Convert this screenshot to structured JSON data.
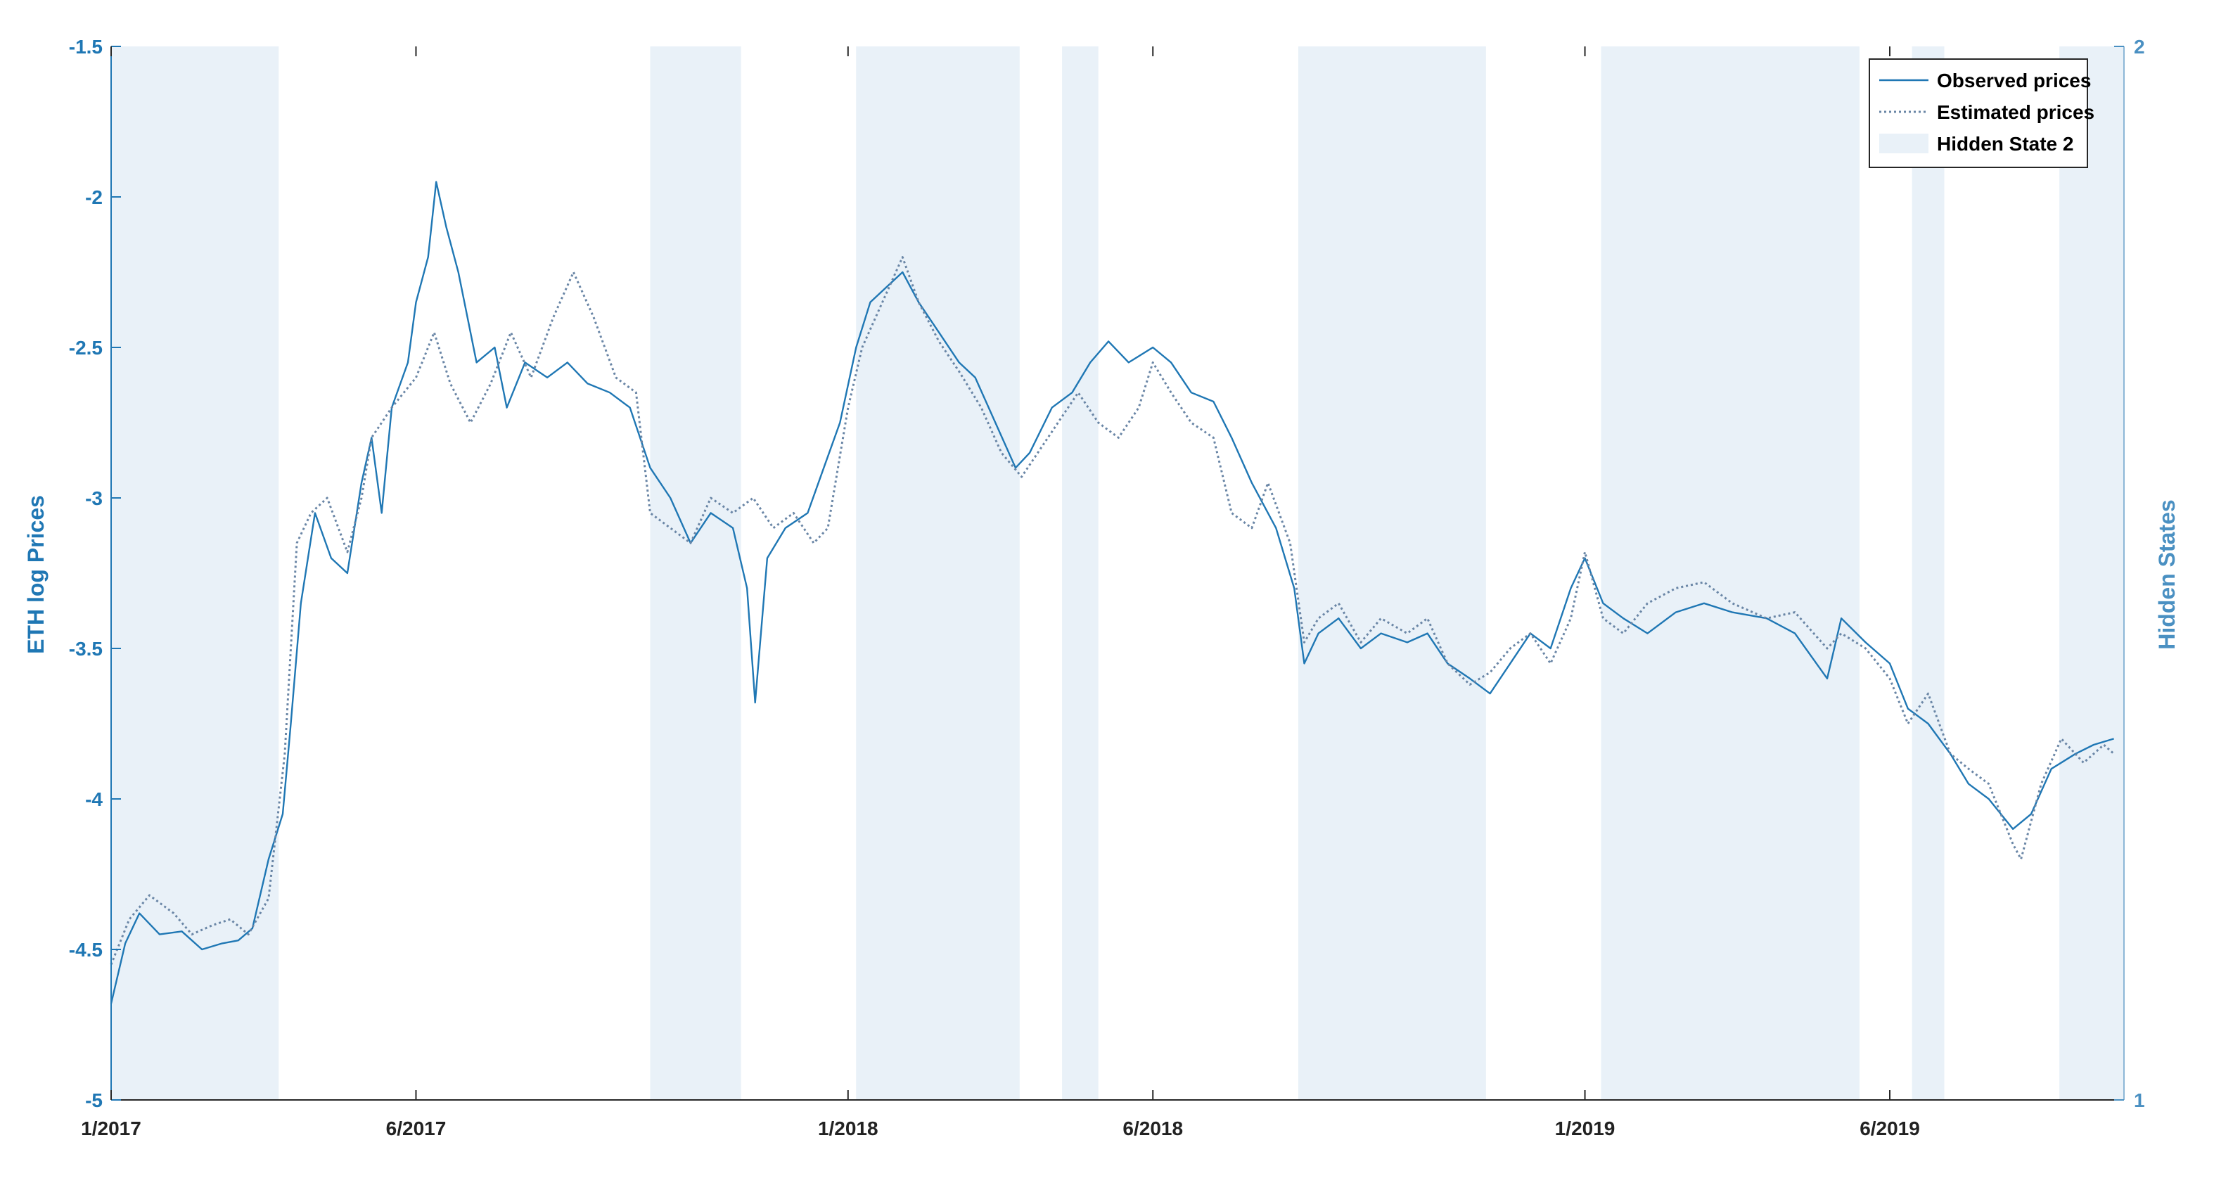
{
  "chart_data": {
    "type": "line",
    "x_tick_labels": [
      "1/2017",
      "6/2017",
      "1/2018",
      "6/2018",
      "1/2019",
      "6/2019"
    ],
    "x_ticks": [
      "2017-01-01",
      "2017-06-01",
      "2018-01-01",
      "2018-06-01",
      "2019-01-01",
      "2019-06-01"
    ],
    "xlim": [
      "2017-01-01",
      "2019-09-25"
    ],
    "ylabel": "ETH log Prices",
    "ylim": [
      -5,
      -1.5
    ],
    "y_tick_labels": [
      "-1.5",
      "-2",
      "-2.5",
      "-3",
      "-3.5",
      "-4",
      "-4.5",
      "-5"
    ],
    "ylabel_right": "Hidden States",
    "ylim_right": [
      1,
      2
    ],
    "y_right_tick_labels": [
      "2",
      "1"
    ],
    "legend_position": "top-right",
    "grid": false,
    "series": [
      {
        "name": "Observed prices",
        "style": "solid",
        "color": "#1f77b4",
        "points": [
          [
            "2017-01-01",
            -4.68
          ],
          [
            "2017-01-08",
            -4.48
          ],
          [
            "2017-01-15",
            -4.38
          ],
          [
            "2017-01-25",
            -4.45
          ],
          [
            "2017-02-05",
            -4.44
          ],
          [
            "2017-02-15",
            -4.5
          ],
          [
            "2017-02-25",
            -4.48
          ],
          [
            "2017-03-05",
            -4.47
          ],
          [
            "2017-03-12",
            -4.43
          ],
          [
            "2017-03-20",
            -4.2
          ],
          [
            "2017-03-27",
            -4.05
          ],
          [
            "2017-03-31",
            -3.75
          ],
          [
            "2017-04-05",
            -3.35
          ],
          [
            "2017-04-12",
            -3.05
          ],
          [
            "2017-04-20",
            -3.2
          ],
          [
            "2017-04-28",
            -3.25
          ],
          [
            "2017-05-05",
            -2.95
          ],
          [
            "2017-05-10",
            -2.8
          ],
          [
            "2017-05-15",
            -3.05
          ],
          [
            "2017-05-20",
            -2.7
          ],
          [
            "2017-05-28",
            -2.55
          ],
          [
            "2017-06-01",
            -2.35
          ],
          [
            "2017-06-07",
            -2.2
          ],
          [
            "2017-06-11",
            -1.95
          ],
          [
            "2017-06-16",
            -2.1
          ],
          [
            "2017-06-22",
            -2.25
          ],
          [
            "2017-07-01",
            -2.55
          ],
          [
            "2017-07-10",
            -2.5
          ],
          [
            "2017-07-16",
            -2.7
          ],
          [
            "2017-07-25",
            -2.55
          ],
          [
            "2017-08-05",
            -2.6
          ],
          [
            "2017-08-15",
            -2.55
          ],
          [
            "2017-08-25",
            -2.62
          ],
          [
            "2017-09-05",
            -2.65
          ],
          [
            "2017-09-15",
            -2.7
          ],
          [
            "2017-09-25",
            -2.9
          ],
          [
            "2017-10-05",
            -3.0
          ],
          [
            "2017-10-15",
            -3.15
          ],
          [
            "2017-10-25",
            -3.05
          ],
          [
            "2017-11-05",
            -3.1
          ],
          [
            "2017-11-12",
            -3.3
          ],
          [
            "2017-11-16",
            -3.68
          ],
          [
            "2017-11-22",
            -3.2
          ],
          [
            "2017-12-01",
            -3.1
          ],
          [
            "2017-12-12",
            -3.05
          ],
          [
            "2017-12-20",
            -2.9
          ],
          [
            "2017-12-28",
            -2.75
          ],
          [
            "2018-01-05",
            -2.5
          ],
          [
            "2018-01-12",
            -2.35
          ],
          [
            "2018-01-20",
            -2.3
          ],
          [
            "2018-01-28",
            -2.25
          ],
          [
            "2018-02-05",
            -2.35
          ],
          [
            "2018-02-15",
            -2.45
          ],
          [
            "2018-02-25",
            -2.55
          ],
          [
            "2018-03-05",
            -2.6
          ],
          [
            "2018-03-15",
            -2.75
          ],
          [
            "2018-03-25",
            -2.9
          ],
          [
            "2018-04-01",
            -2.85
          ],
          [
            "2018-04-12",
            -2.7
          ],
          [
            "2018-04-22",
            -2.65
          ],
          [
            "2018-05-01",
            -2.55
          ],
          [
            "2018-05-10",
            -2.48
          ],
          [
            "2018-05-20",
            -2.55
          ],
          [
            "2018-06-01",
            -2.5
          ],
          [
            "2018-06-10",
            -2.55
          ],
          [
            "2018-06-20",
            -2.65
          ],
          [
            "2018-07-01",
            -2.68
          ],
          [
            "2018-07-10",
            -2.8
          ],
          [
            "2018-07-20",
            -2.95
          ],
          [
            "2018-08-01",
            -3.1
          ],
          [
            "2018-08-10",
            -3.3
          ],
          [
            "2018-08-15",
            -3.55
          ],
          [
            "2018-08-22",
            -3.45
          ],
          [
            "2018-09-01",
            -3.4
          ],
          [
            "2018-09-12",
            -3.5
          ],
          [
            "2018-09-22",
            -3.45
          ],
          [
            "2018-10-05",
            -3.48
          ],
          [
            "2018-10-15",
            -3.45
          ],
          [
            "2018-10-25",
            -3.55
          ],
          [
            "2018-11-05",
            -3.6
          ],
          [
            "2018-11-15",
            -3.65
          ],
          [
            "2018-11-25",
            -3.55
          ],
          [
            "2018-12-05",
            -3.45
          ],
          [
            "2018-12-15",
            -3.5
          ],
          [
            "2018-12-25",
            -3.3
          ],
          [
            "2019-01-01",
            -3.2
          ],
          [
            "2019-01-10",
            -3.35
          ],
          [
            "2019-01-20",
            -3.4
          ],
          [
            "2019-02-01",
            -3.45
          ],
          [
            "2019-02-15",
            -3.38
          ],
          [
            "2019-03-01",
            -3.35
          ],
          [
            "2019-03-15",
            -3.38
          ],
          [
            "2019-04-01",
            -3.4
          ],
          [
            "2019-04-15",
            -3.45
          ],
          [
            "2019-05-01",
            -3.6
          ],
          [
            "2019-05-08",
            -3.4
          ],
          [
            "2019-05-20",
            -3.48
          ],
          [
            "2019-06-01",
            -3.55
          ],
          [
            "2019-06-10",
            -3.7
          ],
          [
            "2019-06-20",
            -3.75
          ],
          [
            "2019-07-01",
            -3.85
          ],
          [
            "2019-07-10",
            -3.95
          ],
          [
            "2019-07-20",
            -4.0
          ],
          [
            "2019-08-01",
            -4.1
          ],
          [
            "2019-08-10",
            -4.05
          ],
          [
            "2019-08-20",
            -3.9
          ],
          [
            "2019-09-01",
            -3.85
          ],
          [
            "2019-09-10",
            -3.82
          ],
          [
            "2019-09-20",
            -3.8
          ]
        ]
      },
      {
        "name": "Estimated prices",
        "style": "dotted",
        "color": "#6a86a6",
        "points": [
          [
            "2017-01-01",
            -4.55
          ],
          [
            "2017-01-10",
            -4.4
          ],
          [
            "2017-01-20",
            -4.32
          ],
          [
            "2017-02-01",
            -4.38
          ],
          [
            "2017-02-10",
            -4.45
          ],
          [
            "2017-02-20",
            -4.42
          ],
          [
            "2017-03-01",
            -4.4
          ],
          [
            "2017-03-10",
            -4.45
          ],
          [
            "2017-03-20",
            -4.33
          ],
          [
            "2017-03-28",
            -3.85
          ],
          [
            "2017-04-03",
            -3.15
          ],
          [
            "2017-04-10",
            -3.05
          ],
          [
            "2017-04-18",
            -3.0
          ],
          [
            "2017-04-28",
            -3.18
          ],
          [
            "2017-05-05",
            -3.0
          ],
          [
            "2017-05-10",
            -2.8
          ],
          [
            "2017-05-20",
            -2.7
          ],
          [
            "2017-06-01",
            -2.6
          ],
          [
            "2017-06-10",
            -2.45
          ],
          [
            "2017-06-18",
            -2.62
          ],
          [
            "2017-06-28",
            -2.75
          ],
          [
            "2017-07-08",
            -2.62
          ],
          [
            "2017-07-18",
            -2.45
          ],
          [
            "2017-07-28",
            -2.6
          ],
          [
            "2017-08-08",
            -2.4
          ],
          [
            "2017-08-18",
            -2.25
          ],
          [
            "2017-08-28",
            -2.4
          ],
          [
            "2017-09-08",
            -2.6
          ],
          [
            "2017-09-18",
            -2.65
          ],
          [
            "2017-09-25",
            -3.05
          ],
          [
            "2017-10-05",
            -3.1
          ],
          [
            "2017-10-15",
            -3.15
          ],
          [
            "2017-10-25",
            -3.0
          ],
          [
            "2017-11-05",
            -3.05
          ],
          [
            "2017-11-15",
            -3.0
          ],
          [
            "2017-11-25",
            -3.1
          ],
          [
            "2017-12-05",
            -3.05
          ],
          [
            "2017-12-15",
            -3.15
          ],
          [
            "2017-12-22",
            -3.1
          ],
          [
            "2018-01-01",
            -2.7
          ],
          [
            "2018-01-08",
            -2.5
          ],
          [
            "2018-01-18",
            -2.35
          ],
          [
            "2018-01-28",
            -2.2
          ],
          [
            "2018-02-05",
            -2.35
          ],
          [
            "2018-02-15",
            -2.48
          ],
          [
            "2018-02-25",
            -2.58
          ],
          [
            "2018-03-08",
            -2.7
          ],
          [
            "2018-03-18",
            -2.85
          ],
          [
            "2018-03-28",
            -2.93
          ],
          [
            "2018-04-05",
            -2.85
          ],
          [
            "2018-04-15",
            -2.75
          ],
          [
            "2018-04-25",
            -2.65
          ],
          [
            "2018-05-05",
            -2.75
          ],
          [
            "2018-05-15",
            -2.8
          ],
          [
            "2018-05-25",
            -2.7
          ],
          [
            "2018-06-01",
            -2.55
          ],
          [
            "2018-06-10",
            -2.65
          ],
          [
            "2018-06-20",
            -2.75
          ],
          [
            "2018-07-01",
            -2.8
          ],
          [
            "2018-07-10",
            -3.05
          ],
          [
            "2018-07-20",
            -3.1
          ],
          [
            "2018-07-28",
            -2.95
          ],
          [
            "2018-08-08",
            -3.15
          ],
          [
            "2018-08-15",
            -3.48
          ],
          [
            "2018-08-22",
            -3.4
          ],
          [
            "2018-09-01",
            -3.35
          ],
          [
            "2018-09-12",
            -3.48
          ],
          [
            "2018-09-22",
            -3.4
          ],
          [
            "2018-10-05",
            -3.45
          ],
          [
            "2018-10-15",
            -3.4
          ],
          [
            "2018-10-25",
            -3.55
          ],
          [
            "2018-11-05",
            -3.62
          ],
          [
            "2018-11-15",
            -3.58
          ],
          [
            "2018-11-25",
            -3.5
          ],
          [
            "2018-12-05",
            -3.45
          ],
          [
            "2018-12-15",
            -3.55
          ],
          [
            "2018-12-25",
            -3.4
          ],
          [
            "2019-01-01",
            -3.18
          ],
          [
            "2019-01-10",
            -3.4
          ],
          [
            "2019-01-20",
            -3.45
          ],
          [
            "2019-02-01",
            -3.35
          ],
          [
            "2019-02-15",
            -3.3
          ],
          [
            "2019-03-01",
            -3.28
          ],
          [
            "2019-03-15",
            -3.35
          ],
          [
            "2019-04-01",
            -3.4
          ],
          [
            "2019-04-15",
            -3.38
          ],
          [
            "2019-05-01",
            -3.5
          ],
          [
            "2019-05-08",
            -3.45
          ],
          [
            "2019-05-20",
            -3.5
          ],
          [
            "2019-06-01",
            -3.6
          ],
          [
            "2019-06-10",
            -3.75
          ],
          [
            "2019-06-20",
            -3.65
          ],
          [
            "2019-07-01",
            -3.85
          ],
          [
            "2019-07-10",
            -3.9
          ],
          [
            "2019-07-20",
            -3.95
          ],
          [
            "2019-08-01",
            -4.15
          ],
          [
            "2019-08-05",
            -4.2
          ],
          [
            "2019-08-15",
            -3.95
          ],
          [
            "2019-08-25",
            -3.8
          ],
          [
            "2019-09-05",
            -3.88
          ],
          [
            "2019-09-15",
            -3.82
          ],
          [
            "2019-09-20",
            -3.85
          ]
        ]
      }
    ],
    "hidden_state_2_intervals": [
      [
        "2017-01-01",
        "2017-03-25"
      ],
      [
        "2017-09-25",
        "2017-11-09"
      ],
      [
        "2018-01-05",
        "2018-03-27"
      ],
      [
        "2018-04-17",
        "2018-05-05"
      ],
      [
        "2018-08-12",
        "2018-11-13"
      ],
      [
        "2019-01-09",
        "2019-05-17"
      ],
      [
        "2019-06-12",
        "2019-06-28"
      ],
      [
        "2019-08-24",
        "2019-09-25"
      ]
    ],
    "legend": [
      {
        "label": "Observed prices",
        "style": "solid"
      },
      {
        "label": "Estimated prices",
        "style": "dotted"
      },
      {
        "label": "Hidden State 2",
        "style": "patch"
      }
    ]
  },
  "colors": {
    "observed": "#1f77b4",
    "estimated": "#6a86a6",
    "hidden_state_patch": "#e9f1f8",
    "axis_left": "#1f77b4",
    "axis_right": "#4a90c2",
    "axis_frame": "#8cb6d6"
  }
}
